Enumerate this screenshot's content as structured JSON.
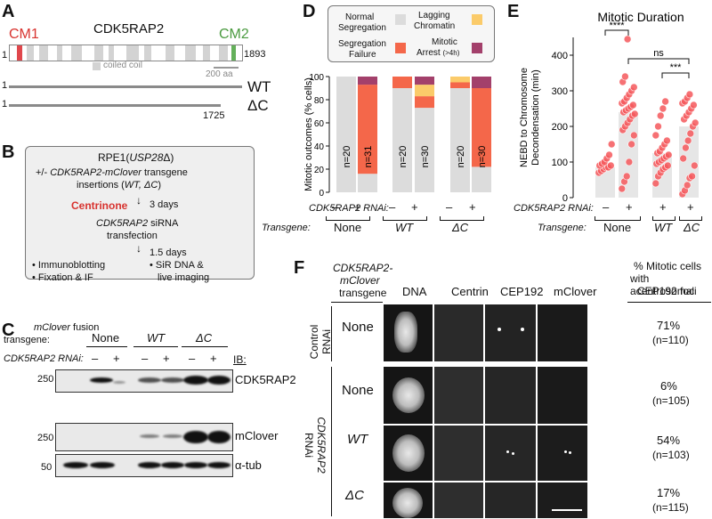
{
  "panelA": {
    "letter": "A",
    "protein": "CDK5RAP2",
    "cm1": "CM1",
    "cm2": "CM2",
    "start": "1",
    "end": "1893",
    "legend": "coiled coil",
    "scale": "200 aa",
    "wt_label": "WT",
    "wt_start": "1",
    "dc_label": "ΔC",
    "dc_start": "1",
    "dc_end": "1725",
    "colors": {
      "cm1": "#e0474c",
      "cm2": "#64b05a",
      "coil": "#d3d3d3"
    }
  },
  "panelB": {
    "letter": "B",
    "title_pre": "RPE1(",
    "title_ital": "USP28",
    "title_post": "Δ)",
    "line1_pre": "+/- ",
    "line1_ital": "CDK5RAP2-mClover",
    "line1_post": " transgene",
    "line2_pre": "insertions (",
    "line2_ital": "WT, ΔC",
    "line2_post": ")",
    "centrinone": "Centrinone",
    "days3": "3 days",
    "sirna_ital": "CDK5RAP2",
    "sirna_post": " siRNA",
    "transfection": "transfection",
    "days15": "1.5 days",
    "bullet1": "Immunoblotting",
    "bullet2": "Fixation & IF",
    "bullet3a": "SiR DNA &",
    "bullet3b": "live imaging"
  },
  "panelC": {
    "letter": "C",
    "fusion_ital": "mClover",
    "fusion_post": " fusion",
    "transgene": "transgene:",
    "groups": [
      "None",
      "WT",
      "ΔC"
    ],
    "rnai_label": "CDK5RAP2 RNAi:",
    "signs": [
      "–",
      "+",
      "–",
      "+",
      "–",
      "+"
    ],
    "ib": "IB:",
    "rows": [
      {
        "mw": "250",
        "label": "CDK5RAP2"
      },
      {
        "mw": "250",
        "label": "mClover"
      },
      {
        "mw": "50",
        "label": "α-tub"
      }
    ]
  },
  "panelD": {
    "letter": "D",
    "legend": [
      {
        "label": "Normal Segregation",
        "color": "#dcdcdc"
      },
      {
        "label": "Lagging Chromatin",
        "color": "#fbcb6a"
      },
      {
        "label": "Segregation Failure",
        "color": "#f4674a"
      },
      {
        "label": "Mitotic Arrest (>4h)",
        "color": "#a3406b"
      }
    ],
    "legend_l1": "Normal",
    "legend_l2": "Segregation",
    "legend_l3": "Lagging",
    "legend_l4": "Chromatin",
    "legend_l5": "Segregation",
    "legend_l6": "Failure",
    "legend_l7": "Mitotic",
    "legend_l8": "Arrest",
    "legend_l8b": "(>4h)",
    "rnai_label": "CDK5RAP2 RNAi:",
    "transgene_label": "Transgene:",
    "groups": [
      "None",
      "WT",
      "ΔC"
    ],
    "signs": [
      "–",
      "+",
      "–",
      "+",
      "–",
      "+"
    ]
  },
  "panelE": {
    "letter": "E",
    "rnai_label": "CDK5RAP2 RNAi:",
    "transgene_label": "Transgene:",
    "groups": [
      "None",
      "WT",
      "ΔC"
    ],
    "signs": [
      "–",
      "+",
      "+",
      "+"
    ],
    "sig1": "****",
    "sig2": "ns",
    "sig3": "***"
  },
  "panelF": {
    "letter": "F",
    "head_transgene_1": "CDK5RAP2-",
    "head_transgene_2": "mClover",
    "head_transgene_3": "transgene",
    "channels": [
      "DNA",
      "Centrin",
      "CEP192",
      "mClover"
    ],
    "pct_head1": "% Mitotic cells",
    "pct_head2": "with acentrosomal",
    "pct_head3": "CEP192 foci",
    "control_label1": "Control",
    "control_label2": "RNAi",
    "rnai_label1": "CDK5RAP2",
    "rnai_label2": "RNAi",
    "rows": [
      {
        "transgene": "None",
        "pct": "71%",
        "n": "(n=110)"
      },
      {
        "transgene": "None",
        "pct": "6%",
        "n": "(n=105)"
      },
      {
        "transgene": "WT",
        "pct": "54%",
        "n": "(n=103)"
      },
      {
        "transgene": "ΔC",
        "pct": "17%",
        "n": "(n=115)"
      }
    ]
  },
  "chart_data": [
    {
      "type": "bar",
      "stacked": true,
      "ylabel": "Mitotic outcomes (% cells)",
      "ylim": [
        0,
        100
      ],
      "yticks": [
        0,
        20,
        40,
        60,
        80,
        100
      ],
      "categories": [
        "None –",
        "None +",
        "WT –",
        "WT +",
        "ΔC –",
        "ΔC +"
      ],
      "n_labels": [
        "n=20",
        "n=31",
        "n=20",
        "n=30",
        "n=20",
        "n=30"
      ],
      "series": [
        {
          "name": "Normal Segregation",
          "values": [
            100,
            16,
            90,
            73,
            90,
            22
          ],
          "color": "#dcdcdc"
        },
        {
          "name": "Segregation Failure",
          "values": [
            0,
            77,
            10,
            10,
            5,
            68
          ],
          "color": "#f4674a"
        },
        {
          "name": "Lagging Chromatin",
          "values": [
            0,
            0,
            0,
            10,
            5,
            0
          ],
          "color": "#fbcb6a"
        },
        {
          "name": "Mitotic Arrest (>4h)",
          "values": [
            0,
            7,
            0,
            7,
            0,
            10
          ],
          "color": "#a3406b"
        }
      ]
    },
    {
      "type": "scatter",
      "title": "Mitotic Duration",
      "ylabel": "NEBD to Chromosome Decondensation (min)",
      "ylim": [
        0,
        450
      ],
      "yticks": [
        0,
        100,
        200,
        300,
        400
      ],
      "categories": [
        "None –",
        "None +",
        "WT +",
        "ΔC +"
      ],
      "bar_means": [
        85,
        240,
        125,
        200
      ],
      "points": [
        [
          70,
          75,
          80,
          85,
          85,
          90,
          90,
          95,
          100,
          110,
          120,
          150
        ],
        [
          25,
          45,
          60,
          100,
          150,
          175,
          190,
          200,
          210,
          220,
          230,
          235,
          240,
          245,
          250,
          255,
          260,
          265,
          270,
          280,
          290,
          300,
          310,
          325,
          340,
          445
        ],
        [
          40,
          60,
          70,
          80,
          85,
          90,
          95,
          100,
          105,
          110,
          115,
          120,
          125,
          130,
          140,
          150,
          160,
          175,
          200,
          230,
          250,
          270
        ],
        [
          10,
          20,
          35,
          55,
          60,
          90,
          110,
          140,
          160,
          180,
          200,
          210,
          220,
          230,
          240,
          250,
          260,
          265,
          270,
          280,
          290
        ]
      ],
      "point_color": "#f4585c"
    }
  ]
}
